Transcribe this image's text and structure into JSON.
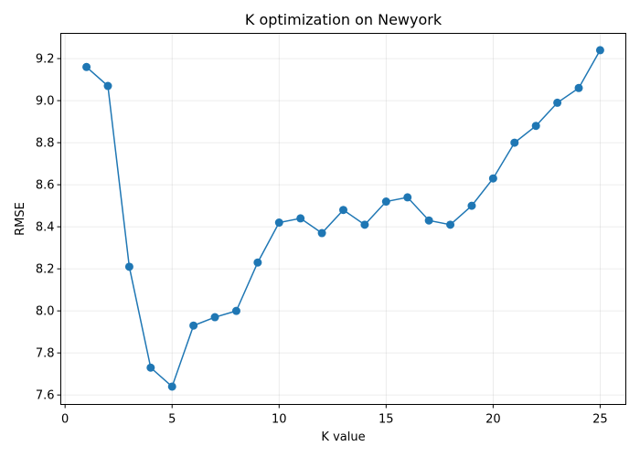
{
  "chart_data": {
    "type": "line",
    "title": "K optimization on Newyork",
    "xlabel": "K value",
    "ylabel": "RMSE",
    "xlim": [
      -0.2,
      26.2
    ],
    "ylim": [
      7.555,
      9.32
    ],
    "xticks": [
      0,
      5,
      10,
      15,
      20,
      25
    ],
    "yticks": [
      7.6,
      7.8,
      8.0,
      8.2,
      8.4,
      8.6,
      8.8,
      9.0,
      9.2
    ],
    "grid": true,
    "color": "#1f77b4",
    "marker": "circle",
    "x": [
      1,
      2,
      3,
      4,
      5,
      6,
      7,
      8,
      9,
      10,
      11,
      12,
      13,
      14,
      15,
      16,
      17,
      18,
      19,
      20,
      21,
      22,
      23,
      24,
      25
    ],
    "y": [
      9.16,
      9.07,
      8.21,
      7.73,
      7.64,
      7.93,
      7.97,
      8.0,
      8.23,
      8.42,
      8.44,
      8.37,
      8.48,
      8.41,
      8.52,
      8.54,
      8.43,
      8.41,
      8.5,
      8.63,
      8.8,
      8.88,
      8.99,
      9.06,
      9.24
    ]
  }
}
